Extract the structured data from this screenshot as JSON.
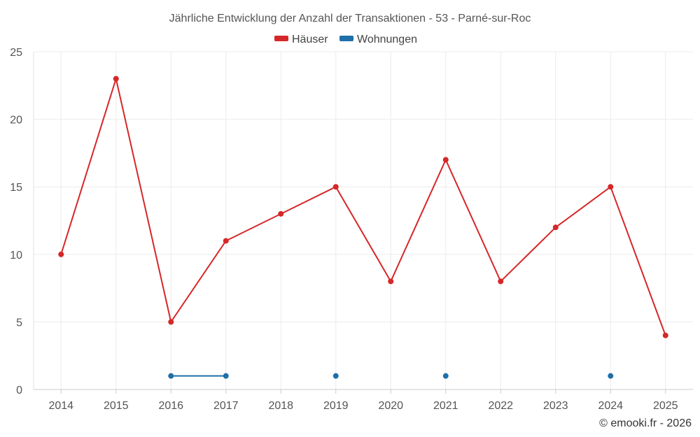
{
  "chart_data": {
    "type": "line",
    "title": "Jährliche Entwicklung der Anzahl der Transaktionen - 53 - Parné-sur-Roc",
    "categories": [
      "2014",
      "2015",
      "2016",
      "2017",
      "2018",
      "2019",
      "2020",
      "2021",
      "2022",
      "2023",
      "2024",
      "2025"
    ],
    "yticks": [
      "0",
      "5",
      "10",
      "15",
      "20",
      "25"
    ],
    "ylim": [
      0,
      25
    ],
    "grid": true,
    "legend_position": "top-center",
    "series": [
      {
        "name": "Häuser",
        "color": "#d62728",
        "values": [
          10,
          23,
          5,
          11,
          13,
          15,
          8,
          17,
          8,
          12,
          15,
          4
        ]
      },
      {
        "name": "Wohnungen",
        "color": "#1f6fa8",
        "values": [
          null,
          null,
          1,
          1,
          null,
          1,
          null,
          1,
          null,
          null,
          1,
          null
        ]
      }
    ],
    "credit": "© emooki.fr - 2026"
  }
}
